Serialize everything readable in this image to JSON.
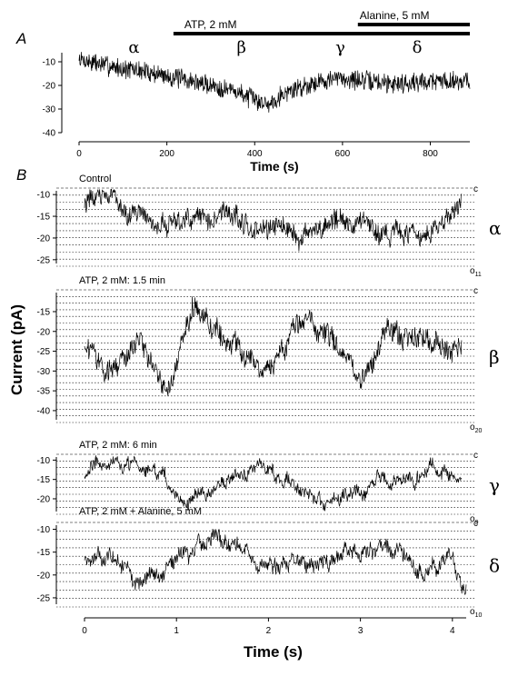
{
  "chart_data": [
    {
      "panel": "A",
      "type": "line",
      "xlabel": "Time (s)",
      "x_ticks": [
        0,
        200,
        400,
        600,
        800
      ],
      "y_ticks": [
        -10,
        -20,
        -30,
        -40
      ],
      "xlim": [
        0,
        890
      ],
      "ylim": [
        -40,
        -5
      ],
      "bars": [
        {
          "label": "ATP, 2 mM",
          "x_start": 215,
          "x_end": 890
        },
        {
          "label": "Alanine, 5 mM",
          "x_start": 635,
          "x_end": 890
        }
      ],
      "segment_labels": [
        {
          "label": "α",
          "x": 125
        },
        {
          "label": "β",
          "x": 370
        },
        {
          "label": "γ",
          "x": 595
        },
        {
          "label": "δ",
          "x": 770
        }
      ],
      "series": [
        {
          "x": [
            0,
            50,
            100,
            150,
            200,
            250,
            300,
            350,
            400,
            430,
            460,
            500,
            550,
            600,
            650,
            700,
            750,
            800,
            850,
            890
          ],
          "values": [
            -9,
            -11,
            -13,
            -14,
            -16,
            -18,
            -20,
            -22,
            -26,
            -28,
            -24,
            -21,
            -18,
            -17,
            -18,
            -19,
            -19,
            -18,
            -18,
            -18
          ]
        }
      ]
    },
    {
      "panel": "B",
      "type": "line",
      "xlabel": "Time (s)",
      "ylabel": "Current (pA)",
      "x_ticks": [
        0,
        1,
        2,
        3,
        4
      ],
      "xlim": [
        0,
        4.15
      ],
      "traces": [
        {
          "condition": "Control",
          "greek": "α",
          "closed_label": "c",
          "open_label": "o",
          "open_sub": "11",
          "y_ticks": [
            -10,
            -15,
            -20,
            -25
          ],
          "ylim": [
            -26.5,
            -8.5
          ],
          "n_levels": 12,
          "base": -15,
          "amp": 9,
          "x": [
            0,
            0.3,
            0.6,
            1.0,
            1.3,
            1.6,
            2.0,
            2.4,
            2.7,
            3.0,
            3.3,
            3.6,
            3.9,
            4.1
          ],
          "values": [
            -11,
            -10,
            -15,
            -19,
            -16,
            -14,
            -18,
            -20,
            -17,
            -14,
            -18,
            -21,
            -16,
            -10
          ]
        },
        {
          "condition": "ATP, 2 mM: 1.5 min",
          "greek": "β",
          "closed_label": "c",
          "open_label": "o",
          "open_sub": "20",
          "y_ticks": [
            -15,
            -20,
            -25,
            -30,
            -35,
            -40
          ],
          "ylim": [
            -43,
            -9.5
          ],
          "n_levels": 21,
          "base": -23,
          "amp": 11,
          "x": [
            0,
            0.3,
            0.6,
            0.9,
            1.2,
            1.6,
            2.0,
            2.3,
            2.6,
            3.0,
            3.3,
            3.6,
            3.9,
            4.1
          ],
          "values": [
            -24,
            -28,
            -22,
            -35,
            -15,
            -24,
            -27,
            -17,
            -20,
            -32,
            -20,
            -22,
            -23,
            -26
          ]
        },
        {
          "condition": "ATP, 2 mM: 6 min",
          "greek": "γ",
          "closed_label": "c",
          "open_label": "o",
          "open_sub": "9",
          "y_ticks": [
            -10,
            -15,
            -20
          ],
          "ylim": [
            -24,
            -8.5
          ],
          "n_levels": 10,
          "base": -15,
          "amp": 6,
          "x": [
            0,
            0.4,
            0.8,
            1.2,
            1.6,
            2.0,
            2.3,
            2.6,
            3.0,
            3.4,
            3.8,
            4.1
          ],
          "values": [
            -13,
            -11,
            -15,
            -19,
            -15,
            -12,
            -17,
            -22,
            -18,
            -15,
            -13,
            -14
          ]
        },
        {
          "condition": "ATP, 2 mM + Alanine, 5 mM",
          "greek": "δ",
          "closed_label": "c",
          "open_label": "o",
          "open_sub": "10",
          "y_ticks": [
            -10,
            -15,
            -20,
            -25
          ],
          "ylim": [
            -27,
            -8.5
          ],
          "n_levels": 11,
          "base": -17,
          "amp": 6,
          "x": [
            0,
            0.3,
            0.6,
            1.0,
            1.4,
            1.8,
            2.1,
            2.5,
            2.9,
            3.3,
            3.7,
            4.0,
            4.15
          ],
          "values": [
            -17,
            -14,
            -22,
            -16,
            -13,
            -15,
            -19,
            -16,
            -15,
            -14,
            -18,
            -16,
            -25
          ]
        }
      ]
    }
  ],
  "labels": {
    "panel_a": "A",
    "panel_b": "B"
  }
}
